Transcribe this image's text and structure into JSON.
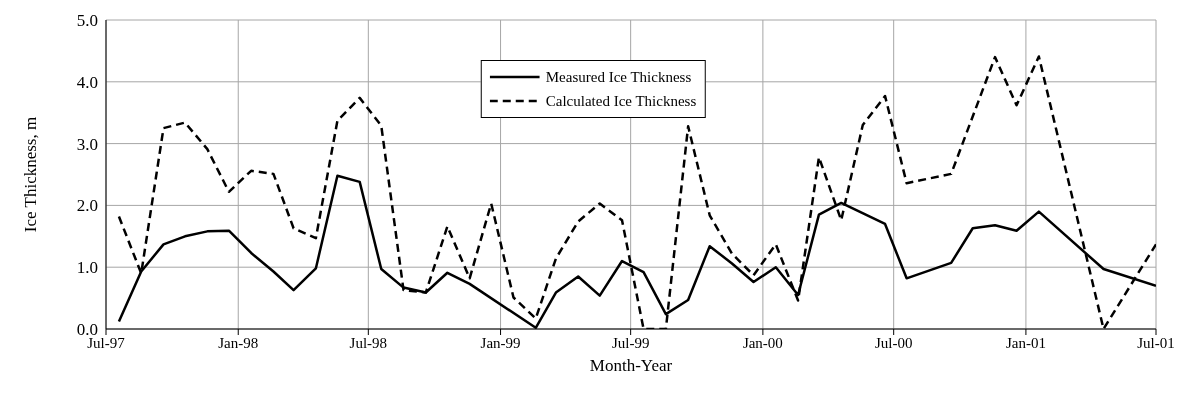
{
  "chart_data": {
    "type": "line",
    "xlabel": "Month-Year",
    "ylabel": "Ice Thickness, m",
    "xlim": [
      "1997-07",
      "2001-07"
    ],
    "xticks": [
      {
        "value": "1997-07",
        "label": "Jul-97"
      },
      {
        "value": "1998-01",
        "label": "Jan-98"
      },
      {
        "value": "1998-07",
        "label": "Jul-98"
      },
      {
        "value": "1999-01",
        "label": "Jan-99"
      },
      {
        "value": "1999-07",
        "label": "Jul-99"
      },
      {
        "value": "2000-01",
        "label": "Jan-00"
      },
      {
        "value": "2000-07",
        "label": "Jul-00"
      },
      {
        "value": "2001-01",
        "label": "Jan-01"
      },
      {
        "value": "2001-07",
        "label": "Jul-01"
      }
    ],
    "ylim": [
      0,
      5
    ],
    "yticks": [
      {
        "value": 0,
        "label": "0.0"
      },
      {
        "value": 1,
        "label": "1.0"
      },
      {
        "value": 2,
        "label": "2.0"
      },
      {
        "value": 3,
        "label": "3.0"
      },
      {
        "value": 4,
        "label": "4.0"
      },
      {
        "value": 5,
        "label": "5.0"
      }
    ],
    "grid": true,
    "legend": "top",
    "marker": "none",
    "series": [
      {
        "name": "Measured Ice Thickness",
        "color": "#000000",
        "line_style": "solid",
        "x": [
          "1997-07-19",
          "1997-08-19",
          "1997-09-19",
          "1997-10-19",
          "1997-11-19",
          "1997-12-19",
          "1998-01-19",
          "1998-02-19",
          "1998-03-19",
          "1998-04-19",
          "1998-05-19",
          "1998-06-19",
          "1998-07-19",
          "1998-08-19",
          "1998-09-19",
          "1998-10-19",
          "1998-11-19",
          "1999-02-19",
          "1999-03-19",
          "1999-04-19",
          "1999-05-19",
          "1999-06-19",
          "1999-07-19",
          "1999-08-19",
          "1999-09-19",
          "1999-10-19",
          "1999-11-19",
          "1999-12-19",
          "2000-01-19",
          "2000-02-19",
          "2000-03-19",
          "2000-04-19",
          "2000-06-19",
          "2000-07-19",
          "2000-09-19",
          "2000-10-19",
          "2000-11-19",
          "2000-12-19",
          "2001-01-19",
          "2001-04-19",
          "2001-07-01"
        ],
        "values": [
          0.12,
          0.93,
          1.37,
          1.5,
          1.58,
          1.59,
          1.23,
          0.93,
          0.63,
          0.98,
          2.48,
          2.38,
          0.97,
          0.67,
          0.59,
          0.91,
          0.73,
          0.02,
          0.59,
          0.85,
          0.54,
          1.1,
          0.92,
          0.24,
          0.47,
          1.34,
          1.06,
          0.76,
          1.0,
          0.55,
          1.85,
          2.04,
          1.7,
          0.82,
          1.07,
          1.63,
          1.68,
          1.59,
          1.9,
          0.97,
          0.7
        ]
      },
      {
        "name": "Calculated Ice Thickness",
        "color": "#000000",
        "line_style": "dashed",
        "x": [
          "1997-07-19",
          "1997-08-19",
          "1997-09-19",
          "1997-10-19",
          "1997-11-19",
          "1997-12-19",
          "1998-01-19",
          "1998-02-19",
          "1998-03-19",
          "1998-04-19",
          "1998-05-19",
          "1998-06-19",
          "1998-07-19",
          "1998-08-19",
          "1998-09-19",
          "1998-10-19",
          "1998-11-19",
          "1998-12-19",
          "1999-01-19",
          "1999-02-19",
          "1999-03-19",
          "1999-04-19",
          "1999-05-19",
          "1999-06-19",
          "1999-07-19",
          "1999-08-19",
          "1999-09-19",
          "1999-10-19",
          "1999-11-19",
          "1999-12-19",
          "2000-01-19",
          "2000-02-19",
          "2000-03-19",
          "2000-04-19",
          "2000-05-19",
          "2000-06-19",
          "2000-07-19",
          "2000-09-19",
          "2000-11-19",
          "2000-12-19",
          "2001-01-19",
          "2001-04-19",
          "2001-07-01"
        ],
        "values": [
          1.82,
          0.9,
          3.25,
          3.34,
          2.91,
          2.22,
          2.56,
          2.51,
          1.63,
          1.47,
          3.37,
          3.74,
          3.29,
          0.63,
          0.59,
          1.66,
          0.82,
          2.03,
          0.51,
          0.17,
          1.14,
          1.74,
          2.03,
          1.76,
          0.0,
          0.0,
          3.28,
          1.84,
          1.22,
          0.87,
          1.37,
          0.46,
          2.78,
          1.76,
          3.3,
          3.77,
          2.36,
          2.51,
          4.4,
          3.62,
          4.41,
          0.0,
          1.37
        ]
      }
    ]
  }
}
